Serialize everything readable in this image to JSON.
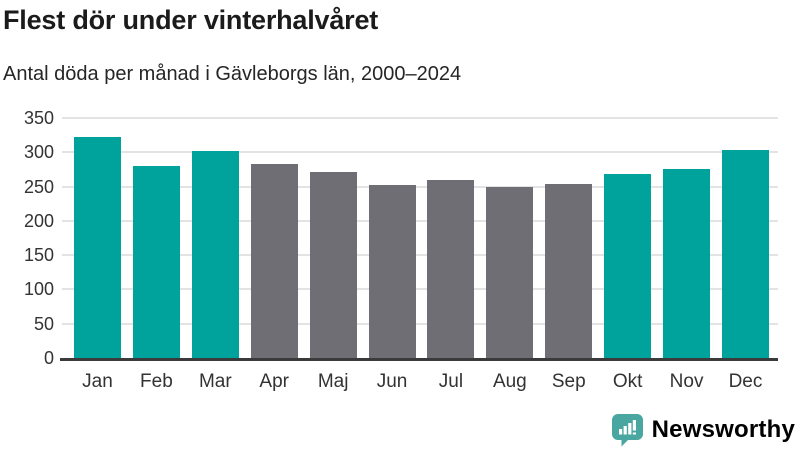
{
  "header": {
    "title": "Flest dör under vinterhalvåret",
    "subtitle": "Antal döda per månad i Gävleborgs län, 2000–2024"
  },
  "branding": {
    "logo_text": "Newsworthy",
    "logo_icon": "speech-bubble-bar-chart-icon",
    "logo_color": "#4aa6a0"
  },
  "colors": {
    "highlight_bar": "#00a39c",
    "default_bar": "#6e6e74",
    "gridline": "#e3e3e3",
    "axis_line": "#3a3a3a",
    "tick_text": "#333333"
  },
  "chart_data": {
    "type": "bar",
    "title": "Flest dör under vinterhalvåret",
    "subtitle": "Antal döda per månad i Gävleborgs län, 2000–2024",
    "categories": [
      "Jan",
      "Feb",
      "Mar",
      "Apr",
      "Maj",
      "Jun",
      "Jul",
      "Aug",
      "Sep",
      "Okt",
      "Nov",
      "Dec"
    ],
    "values": [
      322,
      280,
      302,
      283,
      271,
      252,
      260,
      250,
      254,
      268,
      276,
      304
    ],
    "highlighted": [
      true,
      true,
      true,
      false,
      false,
      false,
      false,
      false,
      false,
      true,
      true,
      true
    ],
    "xlabel": "",
    "ylabel": "",
    "ylim": [
      0,
      350
    ],
    "yticks": [
      0,
      50,
      100,
      150,
      200,
      250,
      300,
      350
    ],
    "grid": true,
    "legend": "none"
  }
}
